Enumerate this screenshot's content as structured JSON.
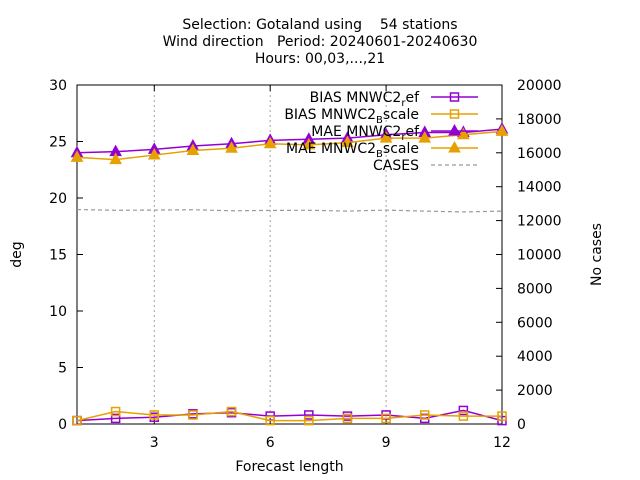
{
  "chart_data": {
    "type": "line",
    "title_lines": [
      "Selection: Gotaland using    54 stations",
      "Wind direction   Period: 20240601-20240630",
      "Hours: 00,03,...,21"
    ],
    "xlabel": "Forecast length",
    "ylabel": "deg",
    "y2label": "No cases",
    "xlim": [
      1,
      12
    ],
    "ylim": [
      0,
      30
    ],
    "y2lim": [
      0,
      20000
    ],
    "xticks": [
      3,
      6,
      9,
      12
    ],
    "yticks": [
      0,
      5,
      10,
      15,
      20,
      25,
      30
    ],
    "y2ticks": [
      0,
      2000,
      4000,
      6000,
      8000,
      10000,
      12000,
      14000,
      16000,
      18000,
      20000
    ],
    "grid": true,
    "legend_position": "top-right",
    "x": [
      1,
      2,
      3,
      4,
      5,
      6,
      7,
      8,
      9,
      10,
      11,
      12
    ],
    "series": [
      {
        "name": "BIAS MNWC2_ref",
        "legend_main": "BIAS MNWC2",
        "legend_sub": "r",
        "legend_tail": "ef",
        "color": "#9400d3",
        "marker": "square",
        "axis": "y",
        "dash": false,
        "values": [
          0.3,
          0.5,
          0.6,
          0.9,
          1.0,
          0.7,
          0.8,
          0.7,
          0.8,
          0.5,
          1.2,
          0.3
        ]
      },
      {
        "name": "BIAS MNWC2_Bscale",
        "legend_main": "BIAS MNWC2",
        "legend_sub": "B",
        "legend_tail": "scale",
        "color": "#e6a000",
        "marker": "square",
        "axis": "y",
        "dash": false,
        "values": [
          0.3,
          1.1,
          0.8,
          0.8,
          1.1,
          0.3,
          0.3,
          0.5,
          0.5,
          0.8,
          0.7,
          0.7
        ]
      },
      {
        "name": "MAE MNWC2_ref",
        "legend_main": "MAE MNWC2",
        "legend_sub": "r",
        "legend_tail": "ef",
        "color": "#9400d3",
        "marker": "triangle",
        "axis": "y",
        "dash": false,
        "values": [
          24.0,
          24.1,
          24.3,
          24.6,
          24.8,
          25.1,
          25.2,
          25.3,
          25.6,
          25.8,
          25.8,
          26.1
        ]
      },
      {
        "name": "MAE MNWC2_Bscale",
        "legend_main": "MAE MNWC2",
        "legend_sub": "B",
        "legend_tail": "scale",
        "color": "#e6a000",
        "marker": "triangle",
        "axis": "y",
        "dash": false,
        "values": [
          23.6,
          23.4,
          23.8,
          24.2,
          24.4,
          24.8,
          24.7,
          24.9,
          25.3,
          25.3,
          25.6,
          25.9
        ]
      },
      {
        "name": "CASES",
        "legend_main": "CASES",
        "legend_sub": "",
        "legend_tail": "",
        "color": "#999999",
        "marker": "none",
        "axis": "y2",
        "dash": true,
        "values": [
          12650,
          12610,
          12620,
          12640,
          12580,
          12600,
          12610,
          12560,
          12620,
          12560,
          12510,
          12560
        ]
      }
    ]
  }
}
